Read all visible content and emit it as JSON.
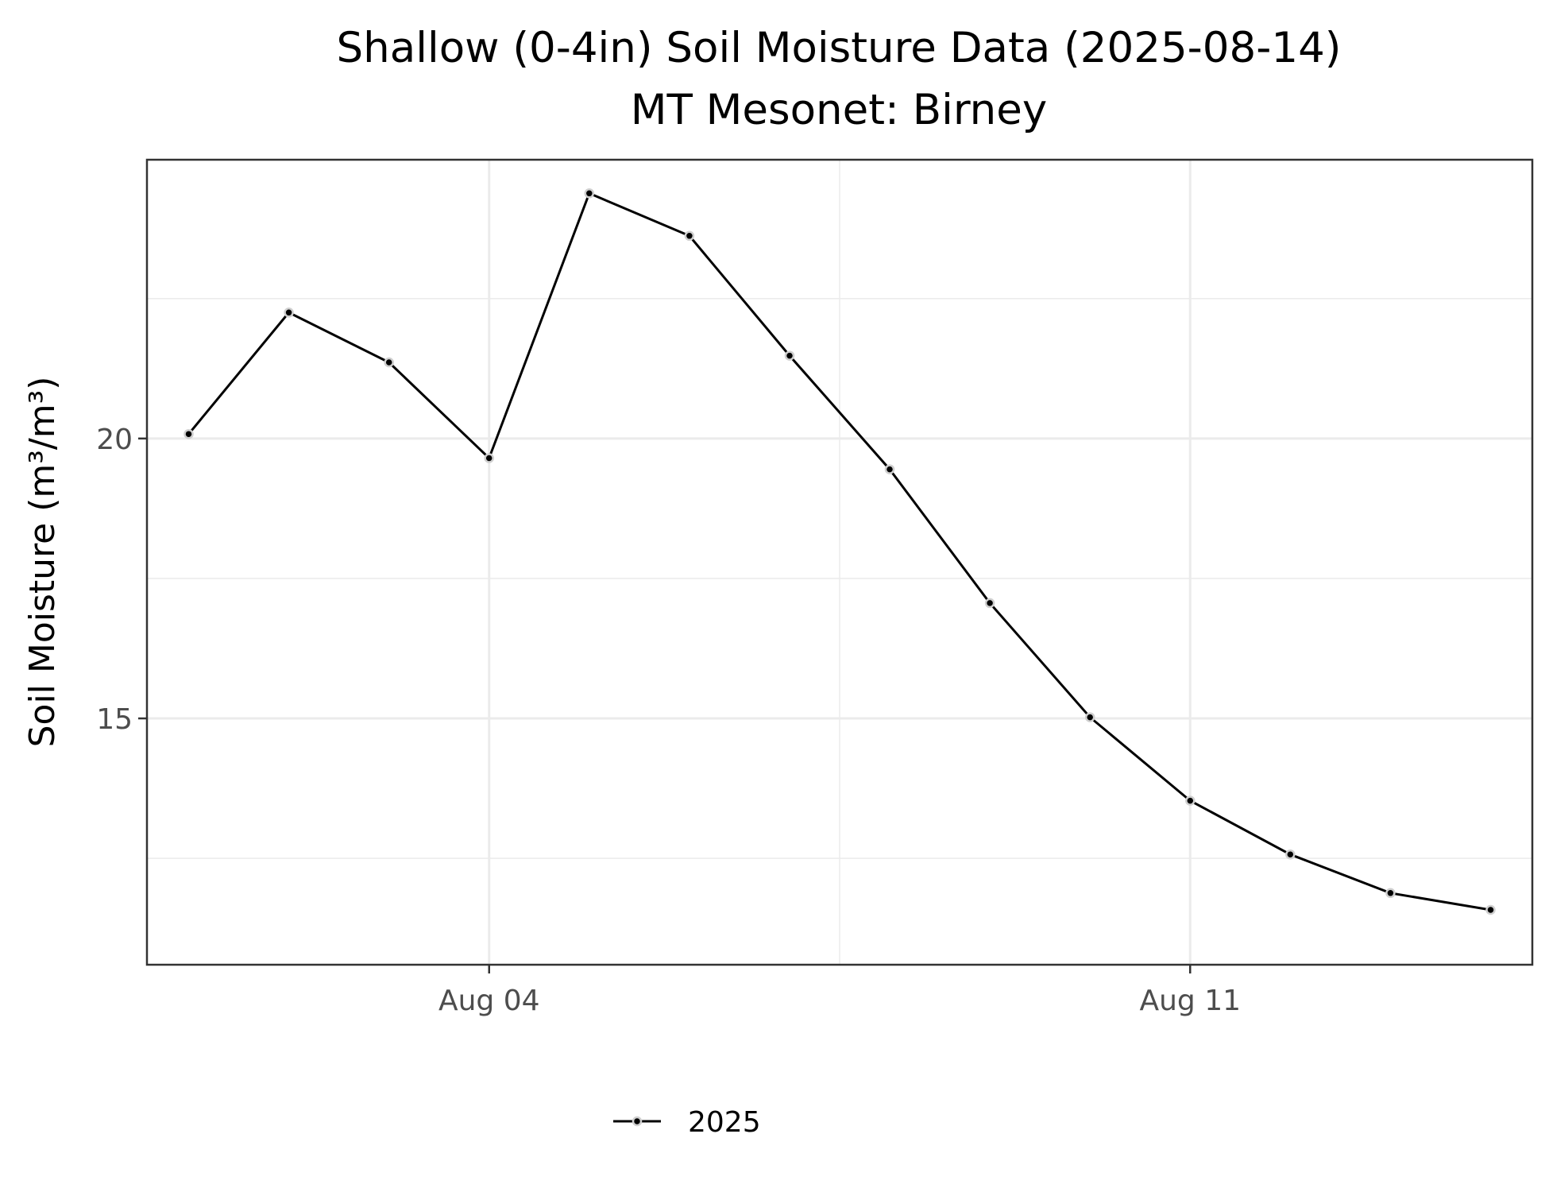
{
  "chart_data": {
    "type": "line",
    "title": "Shallow (0-4in) Soil Moisture Data (2025-08-14)",
    "subtitle": "MT Mesonet: Birney",
    "ylabel": "Soil Moisture (m³/m³)",
    "xlabel": "",
    "x": [
      "2025-08-01",
      "2025-08-02",
      "2025-08-03",
      "2025-08-04",
      "2025-08-05",
      "2025-08-06",
      "2025-08-07",
      "2025-08-08",
      "2025-08-09",
      "2025-08-10",
      "2025-08-11",
      "2025-08-12",
      "2025-08-13",
      "2025-08-14"
    ],
    "series": [
      {
        "name": "2025",
        "color": "#000000",
        "values": [
          20.08,
          22.25,
          21.36,
          19.65,
          24.38,
          23.62,
          21.48,
          19.45,
          17.06,
          15.02,
          13.53,
          12.57,
          11.88,
          11.58
        ]
      }
    ],
    "xlim": [
      "2025-07-31T14:00",
      "2025-08-14T10:00"
    ],
    "ylim": [
      10.6,
      24.98
    ],
    "x_ticks": [
      {
        "date": "2025-08-04",
        "label": "Aug 04"
      },
      {
        "date": "2025-08-11",
        "label": "Aug 11"
      }
    ],
    "x_minor_ticks": [
      "2025-07-31T12:00",
      "2025-08-07T12:00",
      "2025-08-14T12:00"
    ],
    "y_ticks": [
      {
        "value": 15,
        "label": "15"
      },
      {
        "value": 20,
        "label": "20"
      }
    ],
    "y_minor_ticks": [
      12.5,
      17.5,
      22.5
    ],
    "grid": true,
    "legend": {
      "position": "bottom",
      "entries": [
        "2025"
      ]
    }
  }
}
